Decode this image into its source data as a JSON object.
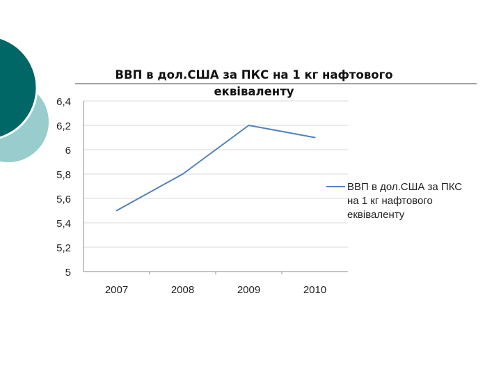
{
  "colors": {
    "series": "#4f81bd",
    "deco_dark": "#006666",
    "deco_light": "#99cccc",
    "grid": "#d9d9d9",
    "axis": "#8c8c8c"
  },
  "chart_data": {
    "type": "line",
    "title_line1": "ВВП в дол.США за ПКС на 1 кг нафтового",
    "title_line2": "еквіваленту",
    "categories": [
      "2007",
      "2008",
      "2009",
      "2010"
    ],
    "series": [
      {
        "name": "ВВП в дол.США за ПКС на 1 кг нафтового еквіваленту",
        "values": [
          5.5,
          5.8,
          6.2,
          6.1
        ]
      }
    ],
    "ylim": [
      5,
      6.4
    ],
    "yticks": [
      "5",
      "5,2",
      "5,4",
      "5,6",
      "5,8",
      "6",
      "6,2",
      "6,4"
    ],
    "grid": true,
    "legend": "right"
  }
}
